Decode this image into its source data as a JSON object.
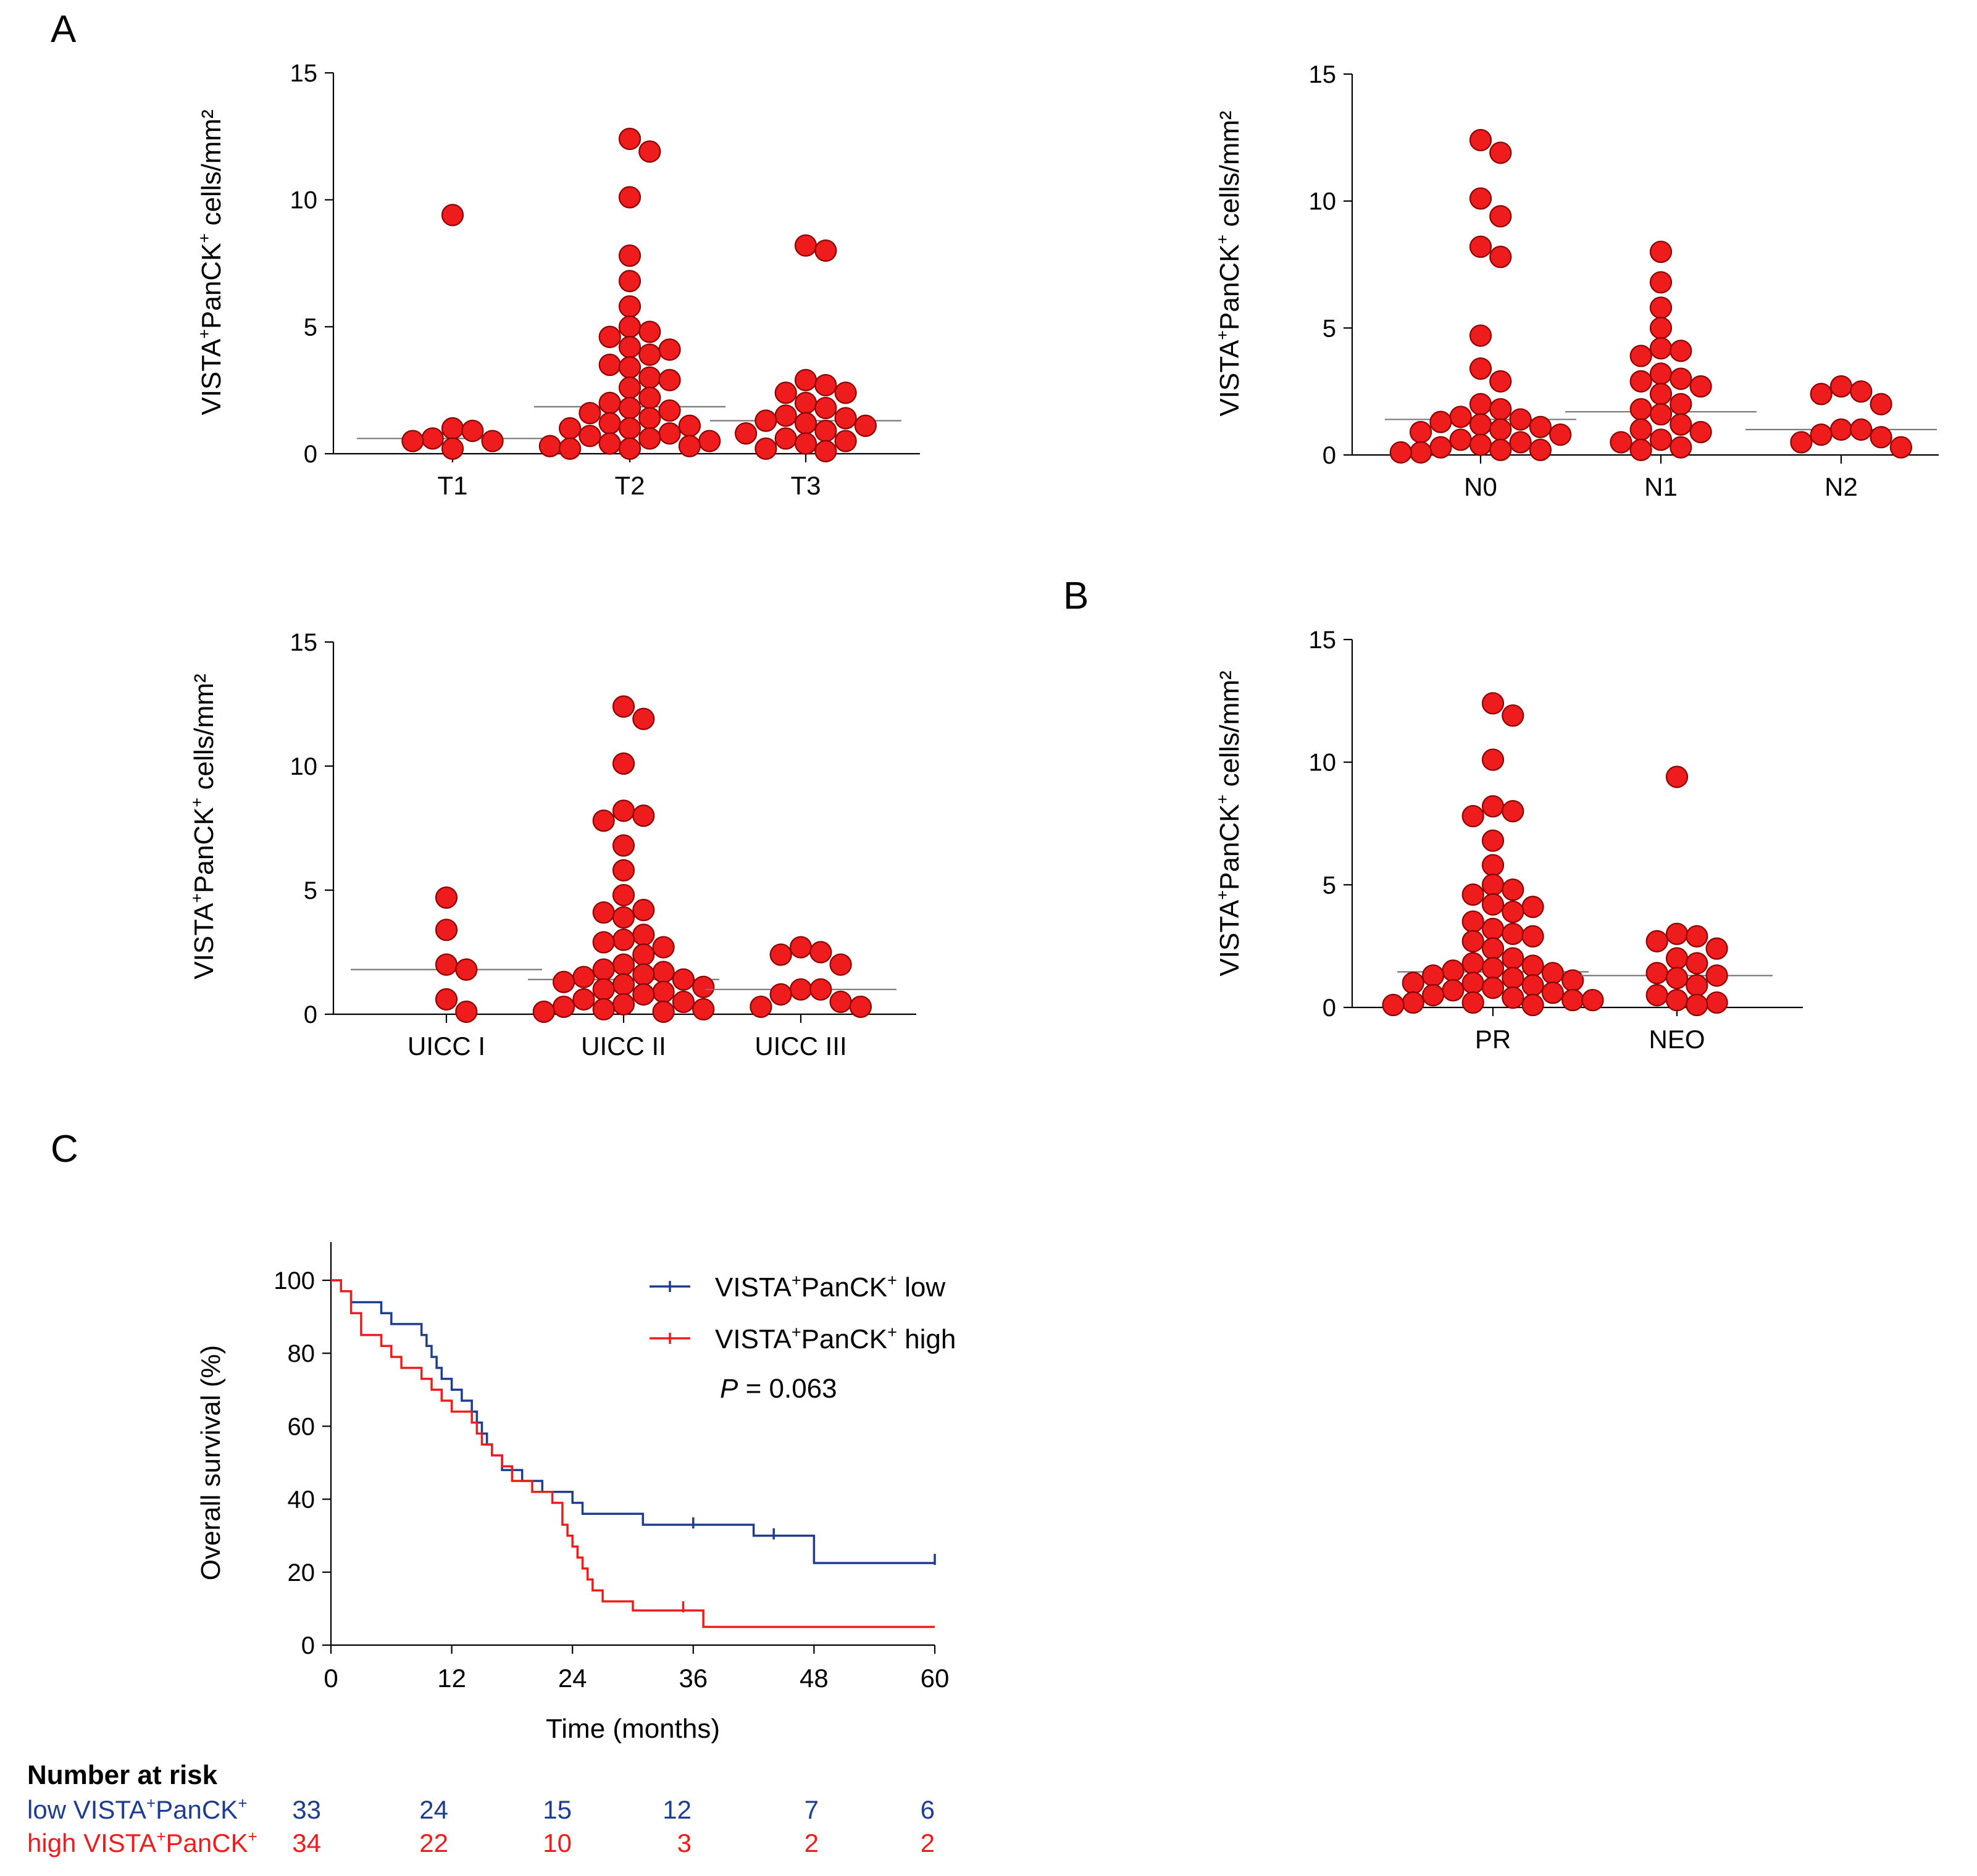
{
  "panel_labels": [
    "A",
    "B",
    "C"
  ],
  "chart_data": [
    {
      "id": "T",
      "type": "scatter",
      "ylabel": "VISTA+PanCK+ cells/mm²",
      "ylabel_main": "VISTA",
      "ylabel_mid": "PanCK",
      "ylabel_tail": " cells/mm²",
      "sup": "+",
      "ylim": [
        0,
        15
      ],
      "yticks": [
        "0",
        "5",
        "10",
        "15"
      ],
      "ytick_values": [
        0,
        5,
        10,
        15
      ],
      "categories": [
        "T1",
        "T2",
        "T3"
      ],
      "medians": [
        0.6,
        1.85,
        1.3
      ],
      "values": [
        [
          9.4,
          0.9,
          0.5,
          0.5,
          0.6,
          1.0,
          0.2
        ],
        [
          12.4,
          11.9,
          10.1,
          7.8,
          6.8,
          5.8,
          5.0,
          4.8,
          4.6,
          4.2,
          4.1,
          3.9,
          3.5,
          3.4,
          3.0,
          2.9,
          2.6,
          2.2,
          2.0,
          1.8,
          1.7,
          1.6,
          1.4,
          1.2,
          1.1,
          1.0,
          1.0,
          0.8,
          0.7,
          0.6,
          0.5,
          0.4,
          0.3,
          0.3,
          0.2,
          0.2
        ],
        [
          8.0,
          8.2,
          2.9,
          2.7,
          2.4,
          2.4,
          2.0,
          1.8,
          1.5,
          1.4,
          1.3,
          1.2,
          1.1,
          0.9,
          0.8,
          0.6,
          0.5,
          0.4,
          0.2,
          0.1
        ]
      ]
    },
    {
      "id": "N",
      "type": "scatter",
      "ylabel": "VISTA+PanCK+ cells/mm²",
      "ylabel_main": "VISTA",
      "ylabel_mid": "PanCK",
      "ylabel_tail": " cells/mm²",
      "sup": "+",
      "ylim": [
        0,
        15
      ],
      "yticks": [
        "0",
        "5",
        "10",
        "15"
      ],
      "ytick_values": [
        0,
        5,
        10,
        15
      ],
      "categories": [
        "N0",
        "N1",
        "N2"
      ],
      "medians": [
        1.4,
        1.7,
        1.0
      ],
      "values": [
        [
          12.4,
          11.9,
          10.1,
          9.4,
          8.2,
          7.8,
          4.7,
          3.4,
          2.9,
          2.0,
          1.8,
          1.5,
          1.4,
          1.3,
          1.2,
          1.1,
          1.0,
          0.9,
          0.8,
          0.6,
          0.5,
          0.4,
          0.3,
          0.2,
          0.2,
          0.1,
          0.1
        ],
        [
          8.0,
          6.8,
          5.8,
          5.0,
          4.2,
          4.1,
          3.9,
          3.2,
          3.0,
          2.9,
          2.7,
          2.4,
          2.0,
          1.8,
          1.6,
          1.2,
          1.0,
          0.9,
          0.6,
          0.5,
          0.3,
          0.2
        ],
        [
          2.7,
          2.5,
          2.4,
          2.0,
          1.0,
          1.0,
          0.8,
          0.7,
          0.5,
          0.3
        ]
      ]
    },
    {
      "id": "UICC",
      "type": "scatter",
      "ylabel": "VISTA+PanCK+ cells/mm²",
      "ylabel_main": "VISTA",
      "ylabel_mid": "PanCK",
      "ylabel_tail": " cells/mm²",
      "sup": "+",
      "ylim": [
        0,
        15
      ],
      "yticks": [
        "0",
        "5",
        "10",
        "15"
      ],
      "ytick_values": [
        0,
        5,
        10,
        15
      ],
      "categories": [
        "UICC I",
        "UICC II",
        "UICC III"
      ],
      "medians": [
        1.8,
        1.4,
        1.0
      ],
      "values": [
        [
          4.7,
          3.4,
          2.0,
          1.8,
          0.6,
          0.1
        ],
        [
          12.4,
          11.9,
          10.1,
          8.2,
          8.0,
          7.8,
          6.8,
          5.8,
          4.8,
          4.2,
          4.1,
          3.9,
          3.2,
          3.0,
          2.9,
          2.7,
          2.4,
          2.0,
          1.8,
          1.7,
          1.6,
          1.5,
          1.4,
          1.3,
          1.2,
          1.1,
          1.0,
          0.9,
          0.8,
          0.6,
          0.5,
          0.4,
          0.3,
          0.2,
          0.2,
          0.1,
          0.1
        ],
        [
          2.7,
          2.5,
          2.4,
          2.0,
          1.0,
          1.0,
          0.8,
          0.5,
          0.3,
          0.3
        ]
      ]
    },
    {
      "id": "treatment",
      "type": "scatter",
      "ylabel": "VISTA+PanCK+ cells/mm²",
      "ylabel_main": "VISTA",
      "ylabel_mid": "PanCK",
      "ylabel_tail": " cells/mm²",
      "sup": "+",
      "ylim": [
        0,
        15
      ],
      "yticks": [
        "0",
        "5",
        "10",
        "15"
      ],
      "ytick_values": [
        0,
        5,
        10,
        15
      ],
      "categories": [
        "PR",
        "NEO"
      ],
      "medians": [
        1.45,
        1.3
      ],
      "values": [
        [
          12.4,
          11.9,
          10.1,
          8.2,
          8.0,
          7.8,
          6.8,
          5.8,
          5.0,
          4.8,
          4.6,
          4.2,
          4.1,
          3.9,
          3.5,
          3.2,
          3.0,
          2.9,
          2.7,
          2.4,
          2.0,
          1.8,
          1.7,
          1.6,
          1.5,
          1.4,
          1.3,
          1.2,
          1.1,
          1.0,
          1.0,
          0.9,
          0.8,
          0.7,
          0.6,
          0.5,
          0.4,
          0.3,
          0.3,
          0.2,
          0.2,
          0.1,
          0.1
        ],
        [
          9.4,
          3.0,
          2.9,
          2.7,
          2.4,
          2.0,
          1.8,
          1.4,
          1.3,
          1.2,
          0.9,
          0.5,
          0.3,
          0.2,
          0.1
        ]
      ]
    },
    {
      "id": "survival",
      "type": "line",
      "title": "",
      "xlabel": "Time (months)",
      "ylabel": "Overall survival (%)",
      "xlim": [
        0,
        60
      ],
      "ylim": [
        0,
        100
      ],
      "xticks": [
        "0",
        "12",
        "24",
        "36",
        "48",
        "60"
      ],
      "xtick_values": [
        0,
        12,
        24,
        36,
        48,
        60
      ],
      "yticks": [
        "0",
        "20",
        "40",
        "60",
        "80",
        "100"
      ],
      "ytick_values": [
        0,
        20,
        40,
        60,
        80,
        100
      ],
      "legend_low": "VISTA+PanCK+ low",
      "legend_high": "VISTA+PanCK+ high",
      "legend_low_suffix": " low",
      "legend_high_suffix": " high",
      "legend_main": "VISTA",
      "legend_mid": "PanCK",
      "sup": "+",
      "p_label": "P",
      "p_value": " = 0.063",
      "series": [
        {
          "name": "VISTA+PanCK+ low",
          "color": "#1f3d8f",
          "steps": [
            [
              0,
              100
            ],
            [
              1,
              97
            ],
            [
              2,
              94
            ],
            [
              5,
              91
            ],
            [
              6,
              88
            ],
            [
              9,
              85
            ],
            [
              9.5,
              82
            ],
            [
              10,
              79
            ],
            [
              10.5,
              76
            ],
            [
              11,
              73
            ],
            [
              12,
              70
            ],
            [
              13,
              67
            ],
            [
              14,
              64
            ],
            [
              14.5,
              61
            ],
            [
              15,
              58
            ],
            [
              15.5,
              55
            ],
            [
              16,
              52
            ],
            [
              17,
              48
            ],
            [
              19,
              45
            ],
            [
              21,
              42
            ],
            [
              24,
              39
            ],
            [
              25,
              36
            ],
            [
              31,
              33
            ],
            [
              42,
              30
            ],
            [
              48,
              22.5
            ],
            [
              60,
              22.5
            ]
          ],
          "censors": [
            [
              36,
              33.5
            ],
            [
              44,
              30.5
            ],
            [
              60,
              23.5
            ]
          ]
        },
        {
          "name": "VISTA+PanCK+ high",
          "color": "#ee1c1c",
          "steps": [
            [
              0,
              100
            ],
            [
              1,
              97
            ],
            [
              2,
              91
            ],
            [
              3,
              85
            ],
            [
              5,
              82
            ],
            [
              6,
              79
            ],
            [
              7,
              76
            ],
            [
              9,
              73
            ],
            [
              10,
              70
            ],
            [
              11,
              67
            ],
            [
              12,
              64
            ],
            [
              14,
              61
            ],
            [
              14.5,
              58
            ],
            [
              15,
              55
            ],
            [
              16,
              52
            ],
            [
              17,
              49
            ],
            [
              18,
              45
            ],
            [
              20,
              42
            ],
            [
              22,
              39
            ],
            [
              23,
              33
            ],
            [
              23.5,
              30
            ],
            [
              24,
              27
            ],
            [
              24.5,
              24
            ],
            [
              25,
              21
            ],
            [
              25.5,
              18
            ],
            [
              26,
              15
            ],
            [
              27,
              12
            ],
            [
              30,
              9.5
            ],
            [
              37,
              5
            ],
            [
              60,
              5
            ]
          ],
          "censors": [
            [
              35,
              10.5
            ]
          ]
        }
      ]
    }
  ],
  "risk_table": {
    "title": "Number at risk",
    "rows": [
      {
        "label": "low VISTA+PanCK+",
        "label_prefix": "low ",
        "color": "#1f3d8f",
        "values": [
          "33",
          "24",
          "15",
          "12",
          "7",
          "6"
        ]
      },
      {
        "label": "high VISTA+PanCK+",
        "label_prefix": "high ",
        "color": "#ee1c1c",
        "values": [
          "34",
          "22",
          "10",
          "3",
          "2",
          "2"
        ]
      }
    ]
  }
}
